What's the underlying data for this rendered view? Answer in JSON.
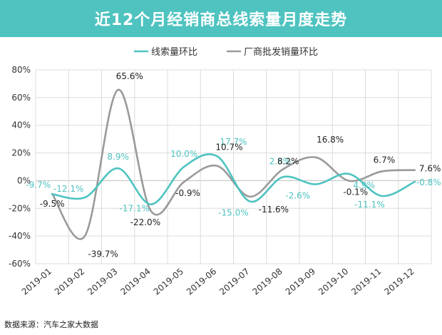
{
  "title": "近12个月经销商总线索量月度走势",
  "source": "数据来源：汽车之家大数据",
  "colors": {
    "title_bg": "#4ec3c0",
    "series1": "#4ec3c0",
    "series2": "#9a9a9a",
    "grid": "#d9d9d9"
  },
  "chart_data": {
    "type": "line",
    "title": "近12个月经销商总线索量月度走势",
    "xlabel": "",
    "ylabel": "",
    "categories": [
      "2019-01",
      "2019-02",
      "2019-03",
      "2019-04",
      "2019-05",
      "2019-06",
      "2019-07",
      "2019-08",
      "2019-09",
      "2019-10",
      "2019-11",
      "2019-12"
    ],
    "ylim": [
      -60,
      80
    ],
    "yticks": [
      -60,
      -40,
      -20,
      0,
      20,
      40,
      60,
      80
    ],
    "ytick_labels": [
      "-60%",
      "-40%",
      "-20%",
      "0%",
      "20%",
      "40%",
      "60%",
      "80%"
    ],
    "grid": true,
    "legend_position": "top-center",
    "smooth": true,
    "series": [
      {
        "name": "线索量环比",
        "color": "#4ec3c0",
        "values": [
          -9.7,
          -12.1,
          8.9,
          -17.1,
          10.0,
          17.7,
          -15.0,
          2.6,
          -2.6,
          4.9,
          -11.1,
          -0.8
        ],
        "labels": [
          "-9.7%",
          "-12.1%",
          "8.9%",
          "-17.1%",
          "10.0%",
          "17.7%",
          "-15.0%",
          "2.6%",
          "-2.6%",
          "4.9%",
          "-11.1%",
          "-0.8%"
        ]
      },
      {
        "name": "厂商批发销量环比",
        "color": "#9a9a9a",
        "values": [
          -9.5,
          -39.7,
          65.6,
          -22.0,
          -0.9,
          10.7,
          -11.6,
          8.2,
          16.8,
          -0.1,
          6.7,
          7.6
        ],
        "labels": [
          "-9.5%",
          "-39.7%",
          "65.6%",
          "-22.0%",
          "-0.9%",
          "10.7%",
          "-11.6%",
          "8.2%",
          "16.8%",
          "-0.1%",
          "6.7%",
          "7.6%"
        ]
      }
    ]
  }
}
